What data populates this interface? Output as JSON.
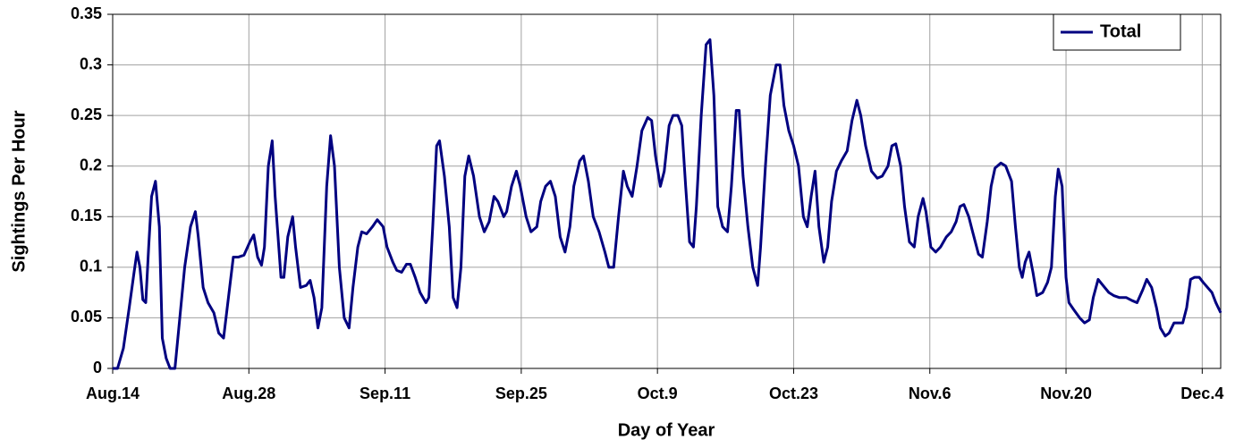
{
  "chart_data": {
    "type": "line",
    "x_label": "Day of Year",
    "y_label": "Sightings Per Hour",
    "xlim": [
      0,
      113.9
    ],
    "xticks": [
      {
        "value": 0,
        "label": "Aug.14"
      },
      {
        "value": 14,
        "label": "Aug.28"
      },
      {
        "value": 28,
        "label": "Sep.11"
      },
      {
        "value": 42,
        "label": "Sep.25"
      },
      {
        "value": 56,
        "label": "Oct.9"
      },
      {
        "value": 70,
        "label": "Oct.23"
      },
      {
        "value": 84,
        "label": "Nov.6"
      },
      {
        "value": 98,
        "label": "Nov.20"
      },
      {
        "value": 112,
        "label": "Dec.4"
      }
    ],
    "ylim": [
      0,
      0.35
    ],
    "yticks": [
      0,
      0.05,
      0.1,
      0.15,
      0.2,
      0.25,
      0.3,
      0.35
    ],
    "grid": true,
    "legend": "top-right",
    "x": [
      0,
      0.5,
      1.1,
      1.7,
      2.2,
      2.5,
      2.8,
      3.1,
      3.4,
      3.7,
      4.0,
      4.4,
      4.8,
      5.1,
      5.5,
      5.9,
      6.4,
      6.8,
      7.4,
      8.0,
      8.5,
      8.8,
      9.3,
      9.8,
      10.4,
      10.9,
      11.4,
      11.9,
      12.4,
      12.9,
      13.5,
      14.1,
      14.5,
      14.9,
      15.3,
      15.6,
      16.0,
      16.4,
      16.7,
      17.3,
      17.6,
      18.0,
      18.5,
      18.8,
      19.3,
      19.9,
      20.3,
      20.7,
      21.1,
      21.5,
      22.0,
      22.4,
      22.8,
      23.3,
      23.8,
      24.3,
      24.7,
      25.2,
      25.6,
      26.1,
      26.7,
      27.2,
      27.8,
      28.2,
      28.8,
      29.2,
      29.7,
      30.2,
      30.6,
      31.1,
      31.6,
      32.2,
      32.5,
      32.9,
      33.3,
      33.6,
      34.1,
      34.6,
      35.0,
      35.4,
      35.8,
      36.2,
      36.6,
      37.1,
      37.7,
      38.2,
      38.7,
      39.2,
      39.6,
      40.2,
      40.5,
      41.0,
      41.5,
      41.9,
      42.5,
      43.0,
      43.6,
      44.0,
      44.5,
      45.0,
      45.5,
      46.0,
      46.5,
      47.0,
      47.4,
      48.0,
      48.4,
      48.9,
      49.4,
      50.0,
      50.6,
      51.0,
      51.5,
      52.0,
      52.5,
      52.9,
      53.4,
      53.9,
      54.4,
      55.0,
      55.4,
      55.8,
      56.3,
      56.7,
      57.2,
      57.6,
      58.1,
      58.5,
      58.9,
      59.3,
      59.7,
      60.0,
      60.5,
      61.0,
      61.4,
      61.8,
      62.2,
      62.7,
      63.2,
      63.6,
      64.1,
      64.4,
      64.8,
      65.3,
      65.8,
      66.3,
      66.6,
      67.1,
      67.6,
      68.2,
      68.6,
      69.0,
      69.5,
      70.0,
      70.5,
      71.0,
      71.4,
      71.8,
      72.2,
      72.6,
      73.1,
      73.5,
      73.9,
      74.4,
      74.9,
      75.5,
      76.0,
      76.5,
      76.9,
      77.4,
      78.0,
      78.6,
      79.1,
      79.7,
      80.1,
      80.5,
      81.0,
      81.4,
      81.9,
      82.4,
      82.8,
      83.3,
      83.6,
      84.1,
      84.6,
      85.1,
      85.7,
      86.2,
      86.7,
      87.1,
      87.5,
      88.0,
      88.4,
      89.0,
      89.4,
      89.9,
      90.3,
      90.7,
      91.3,
      91.8,
      92.4,
      92.8,
      93.2,
      93.5,
      93.8,
      94.2,
      94.6,
      95.0,
      95.6,
      96.1,
      96.5,
      96.9,
      97.2,
      97.6,
      98.0,
      98.3,
      98.8,
      99.4,
      99.9,
      100.4,
      100.8,
      101.3,
      101.8,
      102.4,
      102.9,
      103.5,
      104.2,
      104.8,
      105.3,
      105.9,
      106.3,
      106.8,
      107.3,
      107.7,
      108.2,
      108.6,
      109.1,
      109.6,
      110.0,
      110.4,
      110.8,
      111.2,
      111.7,
      112.1,
      113.0,
      113.4,
      113.9
    ],
    "series": [
      {
        "name": "Total",
        "color": "#000080",
        "values": [
          0,
          0,
          0.02,
          0.06,
          0.095,
          0.115,
          0.1,
          0.068,
          0.065,
          0.12,
          0.17,
          0.185,
          0.14,
          0.03,
          0.01,
          0,
          0,
          0.04,
          0.1,
          0.14,
          0.155,
          0.13,
          0.08,
          0.065,
          0.055,
          0.035,
          0.03,
          0.07,
          0.11,
          0.11,
          0.112,
          0.125,
          0.132,
          0.11,
          0.102,
          0.12,
          0.2,
          0.225,
          0.17,
          0.09,
          0.09,
          0.13,
          0.15,
          0.12,
          0.08,
          0.082,
          0.087,
          0.07,
          0.04,
          0.06,
          0.18,
          0.23,
          0.2,
          0.1,
          0.05,
          0.04,
          0.08,
          0.12,
          0.135,
          0.133,
          0.14,
          0.147,
          0.14,
          0.12,
          0.105,
          0.097,
          0.095,
          0.103,
          0.103,
          0.09,
          0.075,
          0.065,
          0.07,
          0.14,
          0.22,
          0.225,
          0.19,
          0.14,
          0.07,
          0.06,
          0.1,
          0.19,
          0.21,
          0.19,
          0.15,
          0.135,
          0.145,
          0.17,
          0.165,
          0.15,
          0.155,
          0.18,
          0.195,
          0.18,
          0.15,
          0.135,
          0.14,
          0.165,
          0.18,
          0.185,
          0.17,
          0.13,
          0.115,
          0.14,
          0.18,
          0.205,
          0.21,
          0.185,
          0.15,
          0.135,
          0.115,
          0.1,
          0.1,
          0.15,
          0.195,
          0.18,
          0.17,
          0.2,
          0.235,
          0.248,
          0.245,
          0.21,
          0.18,
          0.195,
          0.24,
          0.25,
          0.25,
          0.24,
          0.18,
          0.125,
          0.12,
          0.16,
          0.25,
          0.32,
          0.325,
          0.27,
          0.16,
          0.14,
          0.135,
          0.18,
          0.255,
          0.255,
          0.19,
          0.14,
          0.1,
          0.082,
          0.12,
          0.2,
          0.27,
          0.3,
          0.3,
          0.26,
          0.235,
          0.22,
          0.2,
          0.15,
          0.14,
          0.17,
          0.195,
          0.14,
          0.105,
          0.12,
          0.165,
          0.195,
          0.205,
          0.215,
          0.245,
          0.265,
          0.25,
          0.22,
          0.195,
          0.188,
          0.19,
          0.2,
          0.22,
          0.222,
          0.2,
          0.16,
          0.125,
          0.12,
          0.15,
          0.168,
          0.155,
          0.12,
          0.115,
          0.12,
          0.13,
          0.135,
          0.145,
          0.16,
          0.162,
          0.15,
          0.135,
          0.113,
          0.11,
          0.145,
          0.18,
          0.198,
          0.203,
          0.2,
          0.185,
          0.14,
          0.1,
          0.09,
          0.105,
          0.115,
          0.095,
          0.072,
          0.075,
          0.085,
          0.1,
          0.17,
          0.197,
          0.18,
          0.09,
          0.065,
          0.058,
          0.05,
          0.045,
          0.048,
          0.07,
          0.088,
          0.082,
          0.075,
          0.072,
          0.07,
          0.07,
          0.067,
          0.065,
          0.078,
          0.088,
          0.08,
          0.06,
          0.04,
          0.032,
          0.035,
          0.045,
          0.045,
          0.045,
          0.06,
          0.088,
          0.09,
          0.09,
          0.085,
          0.075,
          0.065,
          0.055
        ]
      }
    ]
  }
}
